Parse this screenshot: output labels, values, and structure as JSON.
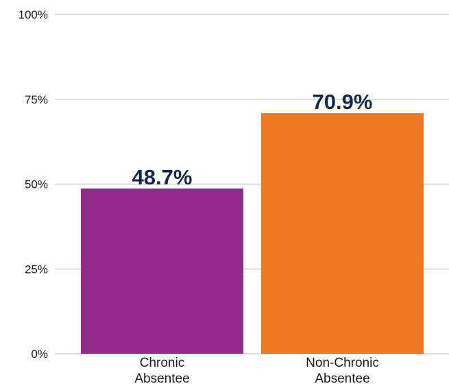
{
  "chart_data": {
    "type": "bar",
    "title": "",
    "xlabel": "",
    "ylabel": "",
    "categories": [
      [
        "Chronic",
        "Absentee"
      ],
      [
        "Non-Chronic",
        "Absentee"
      ]
    ],
    "values": [
      48.7,
      70.9
    ],
    "data_labels": [
      "48.7%",
      "70.9%"
    ],
    "colors": [
      "#922b8b",
      "#ed7a23"
    ],
    "ylim": [
      0,
      100
    ],
    "y_ticks": [
      0,
      25,
      50,
      75,
      100
    ],
    "y_tick_labels": [
      "0%",
      "25%",
      "50%",
      "75%",
      "100%"
    ],
    "grid": true,
    "legend": "none"
  }
}
